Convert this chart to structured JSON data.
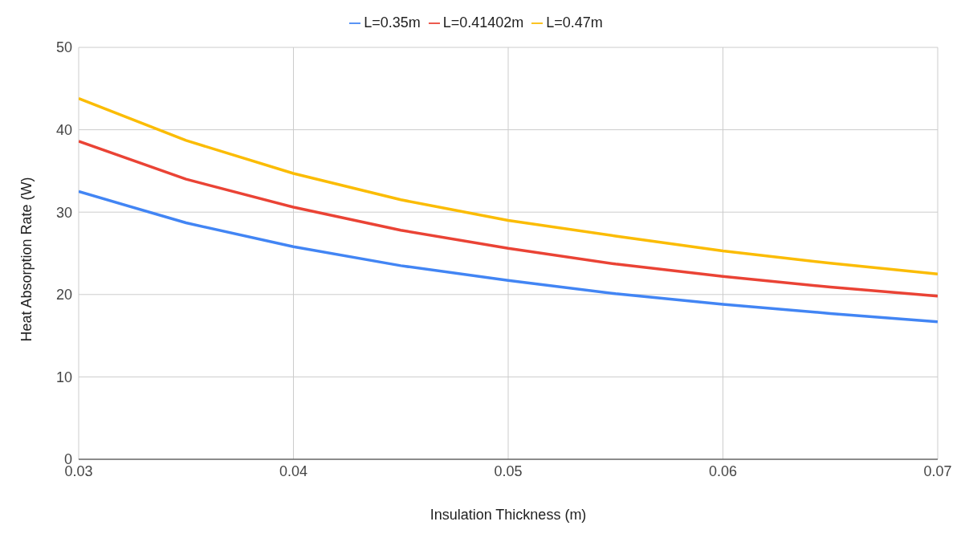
{
  "chart_data": {
    "type": "line",
    "xlabel": "Insulation Thickness (m)",
    "ylabel": "Heat Absorption Rate (W)",
    "x": [
      0.03,
      0.035,
      0.04,
      0.045,
      0.05,
      0.055,
      0.06,
      0.065,
      0.07
    ],
    "series": [
      {
        "name": "L=0.35m",
        "color": "#4285f4",
        "values": [
          32.5,
          28.7,
          25.8,
          23.5,
          21.7,
          20.1,
          18.8,
          17.7,
          16.7
        ]
      },
      {
        "name": "L=0.41402m",
        "color": "#ea4335",
        "values": [
          38.6,
          34.0,
          30.6,
          27.8,
          25.6,
          23.7,
          22.2,
          20.9,
          19.8
        ]
      },
      {
        "name": "L=0.47m",
        "color": "#fbbc04",
        "values": [
          43.8,
          38.7,
          34.7,
          31.5,
          29.0,
          27.1,
          25.3,
          23.8,
          22.5
        ]
      }
    ],
    "xlim": [
      0.03,
      0.07
    ],
    "xticks": [
      0.03,
      0.04,
      0.05,
      0.06,
      0.07
    ],
    "ylim": [
      0,
      50
    ],
    "yticks": [
      0,
      10,
      20,
      30,
      40,
      50
    ],
    "grid": true,
    "legend": "top",
    "marker": "none",
    "line_style": "solid"
  }
}
